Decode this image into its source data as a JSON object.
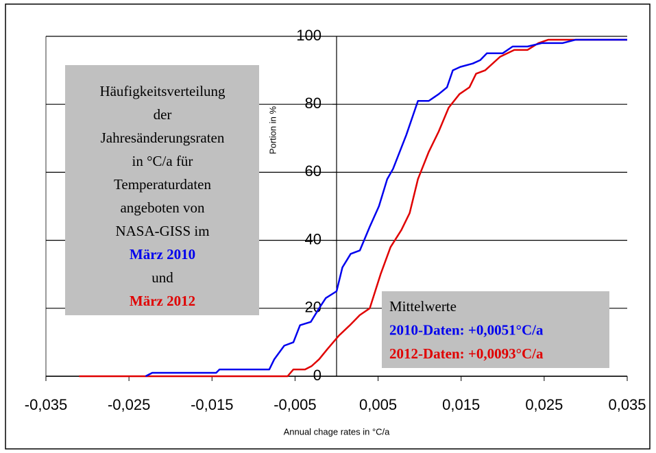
{
  "chart_data": {
    "type": "line",
    "x_label": "Annual chage rates in °C/a",
    "y_label": "Portion in %",
    "xlim": [
      -0.035,
      0.035
    ],
    "xticks": [
      {
        "value": -0.035,
        "label": "-0,035"
      },
      {
        "value": -0.025,
        "label": "-0,025"
      },
      {
        "value": -0.015,
        "label": "-0,015"
      },
      {
        "value": -0.005,
        "label": "-0,005"
      },
      {
        "value": 0.005,
        "label": "0,005"
      },
      {
        "value": 0.015,
        "label": "0,015"
      },
      {
        "value": 0.025,
        "label": "0,025"
      },
      {
        "value": 0.035,
        "label": "0,035"
      }
    ],
    "ylim": [
      0,
      100
    ],
    "yticks": [
      0,
      20,
      40,
      60,
      80,
      100
    ],
    "grid": true,
    "series": [
      {
        "color": "#e00000",
        "x": [
          -0.031,
          -0.0059,
          -0.0052,
          -0.0038,
          -0.003,
          -0.0021,
          -0.0011,
          0.0003,
          0.0016,
          0.0028,
          0.004,
          0.0053,
          0.0065,
          0.0078,
          0.0088,
          0.0098,
          0.0111,
          0.0123,
          0.0135,
          0.0148,
          0.016,
          0.0168,
          0.0179,
          0.0197,
          0.0214,
          0.023,
          0.0243,
          0.0255,
          0.035
        ],
        "values": [
          0,
          0,
          2,
          2,
          3,
          5,
          8,
          12,
          15,
          18,
          20,
          30,
          38,
          43,
          48,
          58,
          66,
          72,
          79,
          83,
          85,
          89,
          90,
          94,
          96,
          96,
          98,
          99,
          99
        ]
      },
      {
        "color": "#0000ee",
        "x": [
          -0.023,
          -0.0222,
          -0.0145,
          -0.0141,
          -0.0081,
          -0.0075,
          -0.0063,
          -0.0052,
          -0.0044,
          -0.0031,
          -0.0021,
          -0.0013,
          0.0,
          0.0007,
          0.0017,
          0.0028,
          0.004,
          0.0051,
          0.0061,
          0.0068,
          0.0084,
          0.0098,
          0.0111,
          0.0123,
          0.0133,
          0.014,
          0.0149,
          0.0164,
          0.0173,
          0.0181,
          0.02,
          0.0212,
          0.023,
          0.0247,
          0.0272,
          0.0288,
          0.035
        ],
        "values": [
          0,
          1,
          1,
          2,
          2,
          5,
          9,
          10,
          15,
          16,
          20,
          23,
          25,
          32,
          36,
          37,
          44,
          50,
          58,
          61,
          71,
          81,
          81,
          83,
          85,
          90,
          91,
          92,
          93,
          95,
          95,
          97,
          97,
          98,
          98,
          99,
          99
        ]
      }
    ],
    "annotations": [
      {
        "lines": [
          {
            "text": "Häufigkeitsverteilung",
            "color": "#000000",
            "bold": false
          },
          {
            "text": "der",
            "color": "#000000",
            "bold": false
          },
          {
            "text": "Jahresänderungsraten",
            "color": "#000000",
            "bold": false
          },
          {
            "text": "in °C/a für",
            "color": "#000000",
            "bold": false
          },
          {
            "text": "Temperaturdaten",
            "color": "#000000",
            "bold": false
          },
          {
            "text": "angeboten von",
            "color": "#000000",
            "bold": false
          },
          {
            "text": "NASA-GISS im",
            "color": "#000000",
            "bold": false
          },
          {
            "text": "März 2010",
            "color": "#0000ee",
            "bold": true
          },
          {
            "text": "und",
            "color": "#000000",
            "bold": false
          },
          {
            "text": "März 2012",
            "color": "#e00000",
            "bold": true
          }
        ]
      },
      {
        "lines": [
          {
            "text": "Mittelwerte",
            "color": "#000000",
            "bold": false
          },
          {
            "text": "2010-Daten: +0,0051°C/a",
            "color": "#0000ee",
            "bold": true
          },
          {
            "text": "2012-Daten: +0,0093°C/a",
            "color": "#e00000",
            "bold": true
          }
        ]
      }
    ]
  }
}
